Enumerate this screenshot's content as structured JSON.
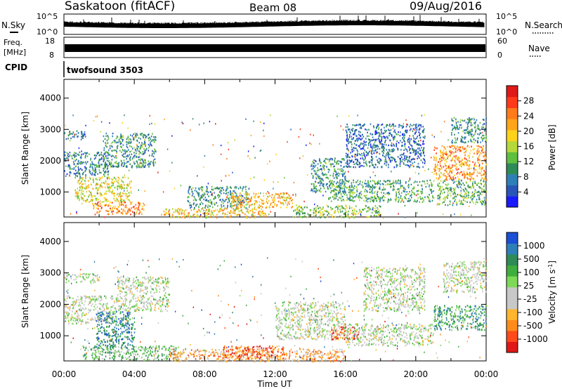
{
  "header": {
    "station": "Saskatoon (fitACF)",
    "beam": "Beam 08",
    "date": "09/Aug/2016"
  },
  "strips": {
    "nsky_label": "N.Sky",
    "nsky_ticks": [
      "10^5",
      "10^0"
    ],
    "nsearch_label": "N.Search",
    "nsearch_ticks": [
      "10^5",
      "10^0"
    ],
    "freq_label_1": "Freq.",
    "freq_label_2": "[MHz]",
    "freq_ticks": [
      "18",
      "8"
    ],
    "nave_label": "Nave",
    "nave_ticks": [
      "60",
      "0"
    ],
    "cpid_label": "CPID",
    "cpid_text": "twofsound 3503"
  },
  "colors": {
    "power": [
      "#1a1aff",
      "#2a55b8",
      "#2e7fb8",
      "#2e8b57",
      "#5fbf3f",
      "#b5d93a",
      "#ffd21a",
      "#ffa51a",
      "#ff7a1a",
      "#ff3a1a",
      "#e01818"
    ],
    "velocity": [
      "#e01818",
      "#ff4a1a",
      "#ff8c1a",
      "#ffb52e",
      "#c8c8c8",
      "#c8c8c8",
      "#7ed957",
      "#3fae3f",
      "#2e8b57",
      "#2e7fb8",
      "#1a4fd6"
    ]
  },
  "chart_data": [
    {
      "type": "heatmap",
      "panel": "power",
      "ylabel": "Slant Range [km]",
      "xlabel": "",
      "x_ticks": [
        "00:00",
        "04:00",
        "08:00",
        "12:00",
        "16:00",
        "20:00",
        "00:00"
      ],
      "y_ticks": [
        1000,
        2000,
        3000,
        4000
      ],
      "ylim": [
        200,
        4600
      ],
      "xlim": [
        0,
        24
      ],
      "colorbar": {
        "label": "Power [dB]",
        "ticks": [
          "28",
          "24",
          "20",
          "16",
          "12",
          "8",
          "4"
        ],
        "range": [
          0,
          30
        ]
      },
      "regions": [
        {
          "t0": 0.0,
          "t1": 1.2,
          "r0": 2700,
          "r1": 3000,
          "level": 0.25
        },
        {
          "t0": 0.0,
          "t1": 2.5,
          "r0": 1500,
          "r1": 2300,
          "level": 0.25
        },
        {
          "t0": 0.6,
          "t1": 3.8,
          "r0": 700,
          "r1": 1500,
          "level": 0.55
        },
        {
          "t0": 1.6,
          "t1": 4.6,
          "r0": 300,
          "r1": 700,
          "level": 0.75
        },
        {
          "t0": 2.2,
          "t1": 5.2,
          "r0": 1800,
          "r1": 2900,
          "level": 0.3
        },
        {
          "t0": 5.5,
          "t1": 11.5,
          "r0": 200,
          "r1": 500,
          "level": 0.6
        },
        {
          "t0": 7.0,
          "t1": 10.5,
          "r0": 500,
          "r1": 1200,
          "level": 0.3
        },
        {
          "t0": 9.5,
          "t1": 13.0,
          "r0": 500,
          "r1": 1000,
          "level": 0.65
        },
        {
          "t0": 13.0,
          "t1": 18.0,
          "r0": 200,
          "r1": 600,
          "level": 0.45
        },
        {
          "t0": 14.0,
          "t1": 16.0,
          "r0": 1000,
          "r1": 2100,
          "level": 0.3
        },
        {
          "t0": 15.0,
          "t1": 21.0,
          "r0": 700,
          "r1": 1400,
          "level": 0.35
        },
        {
          "t0": 16.0,
          "t1": 20.5,
          "r0": 1800,
          "r1": 3200,
          "level": 0.2
        },
        {
          "t0": 21.0,
          "t1": 24.0,
          "r0": 1400,
          "r1": 2500,
          "level": 0.7
        },
        {
          "t0": 21.2,
          "t1": 24.0,
          "r0": 600,
          "r1": 1400,
          "level": 0.4
        },
        {
          "t0": 22.0,
          "t1": 24.0,
          "r0": 2600,
          "r1": 3400,
          "level": 0.3
        }
      ]
    },
    {
      "type": "heatmap",
      "panel": "velocity",
      "ylabel": "Slant Range [km]",
      "xlabel": "Time UT",
      "x_ticks": [
        "00:00",
        "04:00",
        "08:00",
        "12:00",
        "16:00",
        "20:00",
        "00:00"
      ],
      "y_ticks": [
        1000,
        2000,
        3000,
        4000
      ],
      "ylim": [
        200,
        4600
      ],
      "xlim": [
        0,
        24
      ],
      "colorbar": {
        "label": "Velocity [m s^-1]",
        "ticks": [
          "1000",
          "500",
          "100",
          "25",
          "-25",
          "-100",
          "-500",
          "-1000"
        ],
        "range": [
          -1000,
          1000
        ]
      },
      "regions": [
        {
          "t0": 0.0,
          "t1": 2.0,
          "r0": 2700,
          "r1": 3000,
          "level": 0.5
        },
        {
          "t0": 0.0,
          "t1": 3.0,
          "r0": 1400,
          "r1": 2300,
          "level": 0.5
        },
        {
          "t0": 1.8,
          "t1": 4.0,
          "r0": 600,
          "r1": 1800,
          "level": 0.82
        },
        {
          "t0": 1.0,
          "t1": 6.5,
          "r0": 250,
          "r1": 700,
          "level": 0.65
        },
        {
          "t0": 3.0,
          "t1": 6.0,
          "r0": 1800,
          "r1": 2900,
          "level": 0.5
        },
        {
          "t0": 6.0,
          "t1": 16.0,
          "r0": 200,
          "r1": 600,
          "level": 0.3
        },
        {
          "t0": 9.0,
          "t1": 12.5,
          "r0": 300,
          "r1": 700,
          "level": 0.15
        },
        {
          "t0": 12.0,
          "t1": 16.0,
          "r0": 900,
          "r1": 2100,
          "level": 0.5
        },
        {
          "t0": 15.2,
          "t1": 16.8,
          "r0": 900,
          "r1": 1300,
          "level": 0.12
        },
        {
          "t0": 16.0,
          "t1": 21.0,
          "r0": 700,
          "r1": 1400,
          "level": 0.5
        },
        {
          "t0": 17.0,
          "t1": 20.5,
          "r0": 1800,
          "r1": 3200,
          "level": 0.5
        },
        {
          "t0": 21.0,
          "t1": 24.0,
          "r0": 1200,
          "r1": 2000,
          "level": 0.72
        },
        {
          "t0": 21.5,
          "t1": 24.0,
          "r0": 2400,
          "r1": 3400,
          "level": 0.5
        }
      ]
    }
  ],
  "xlabel_bottom": "Time UT"
}
